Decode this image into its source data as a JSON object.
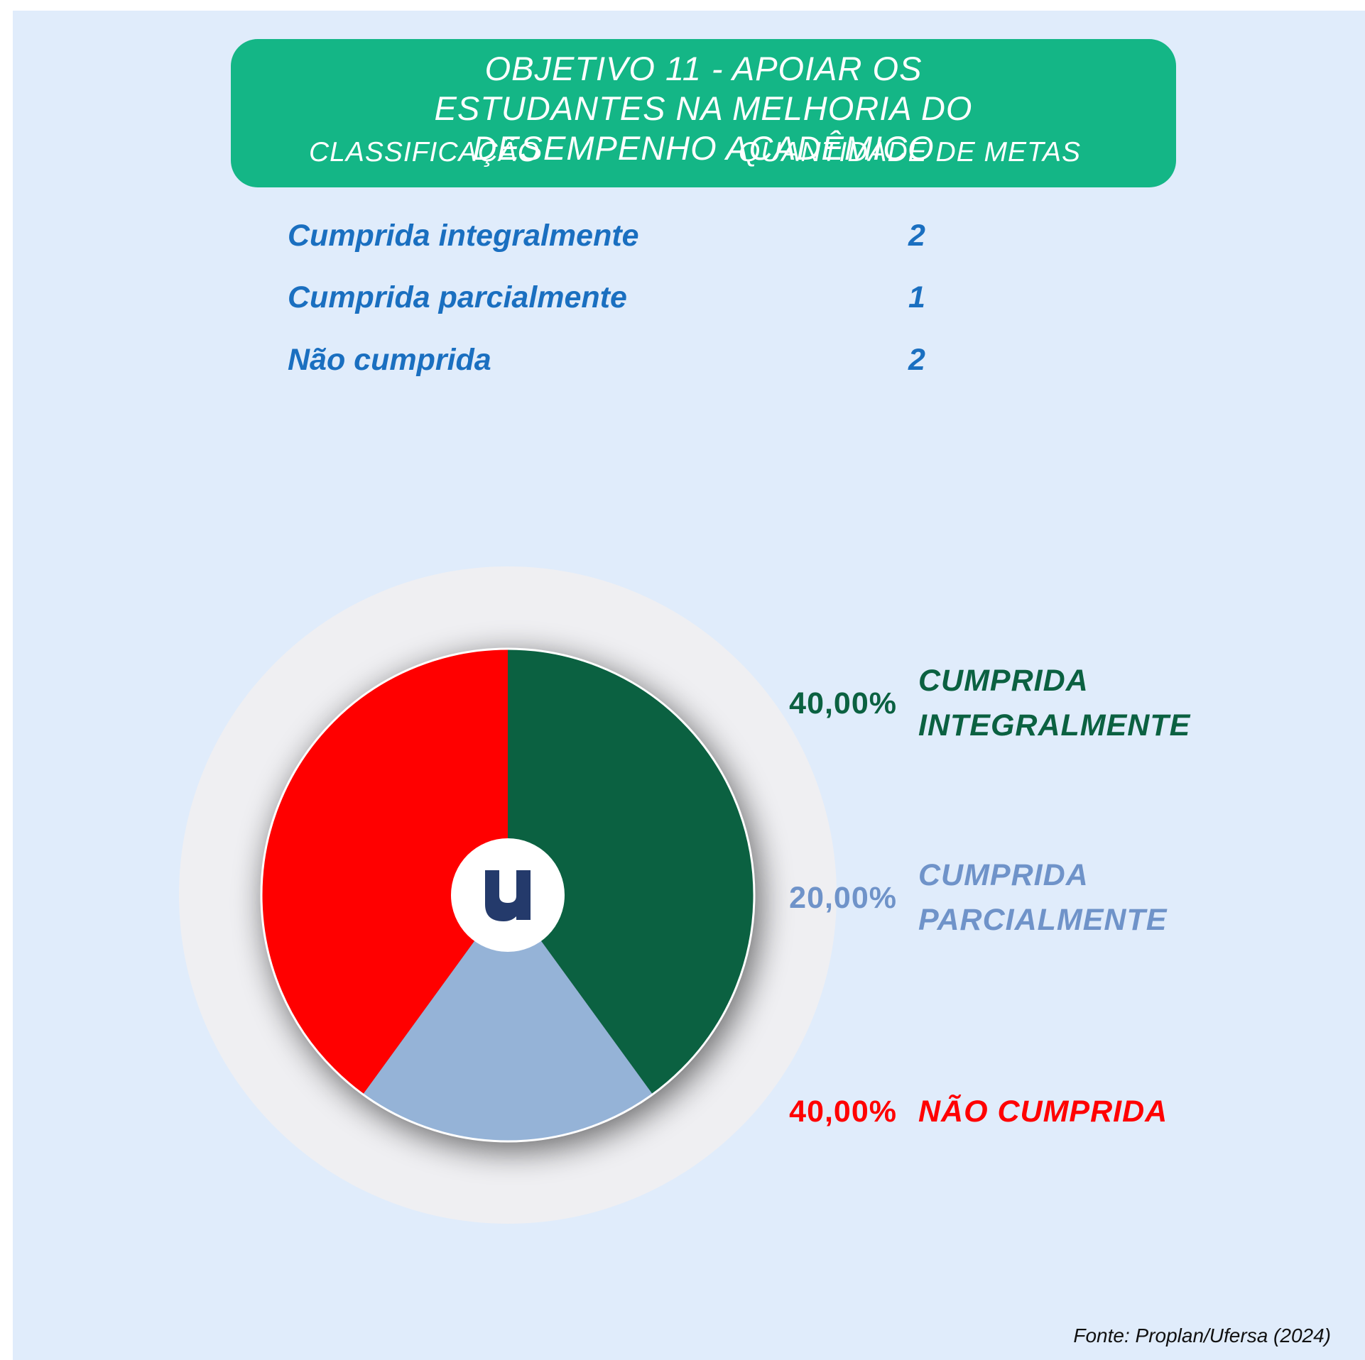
{
  "header": {
    "title": "OBJETIVO 11  - APOIAR OS ESTUDANTES NA MELHORIA DO DESEMPENHO ACADÊMICO",
    "columns": [
      "CLASSIFICAÇÃO",
      "QUANTIDADE DE METAS"
    ]
  },
  "table": {
    "rows": [
      [
        "Cumprida integralmente",
        2
      ],
      [
        "Cumprida parcialmente",
        1
      ],
      [
        "Não cumprida",
        2
      ]
    ]
  },
  "chart_data": {
    "type": "pie",
    "categories": [
      "CUMPRIDA INTEGRALMENTE",
      "CUMPRIDA PARCIALMENTE",
      "NÃO CUMPRIDA"
    ],
    "values": [
      40,
      20,
      40
    ],
    "value_labels": [
      "40,00%",
      "20,00%",
      "40,00%"
    ],
    "colors": [
      "#0b6141",
      "#95b3d7",
      "#ff0000"
    ],
    "label_colors": [
      "#0b6141",
      "#6f93c9",
      "#ff0000"
    ]
  },
  "source": "Fonte: Proplan/Ufersa (2024)"
}
